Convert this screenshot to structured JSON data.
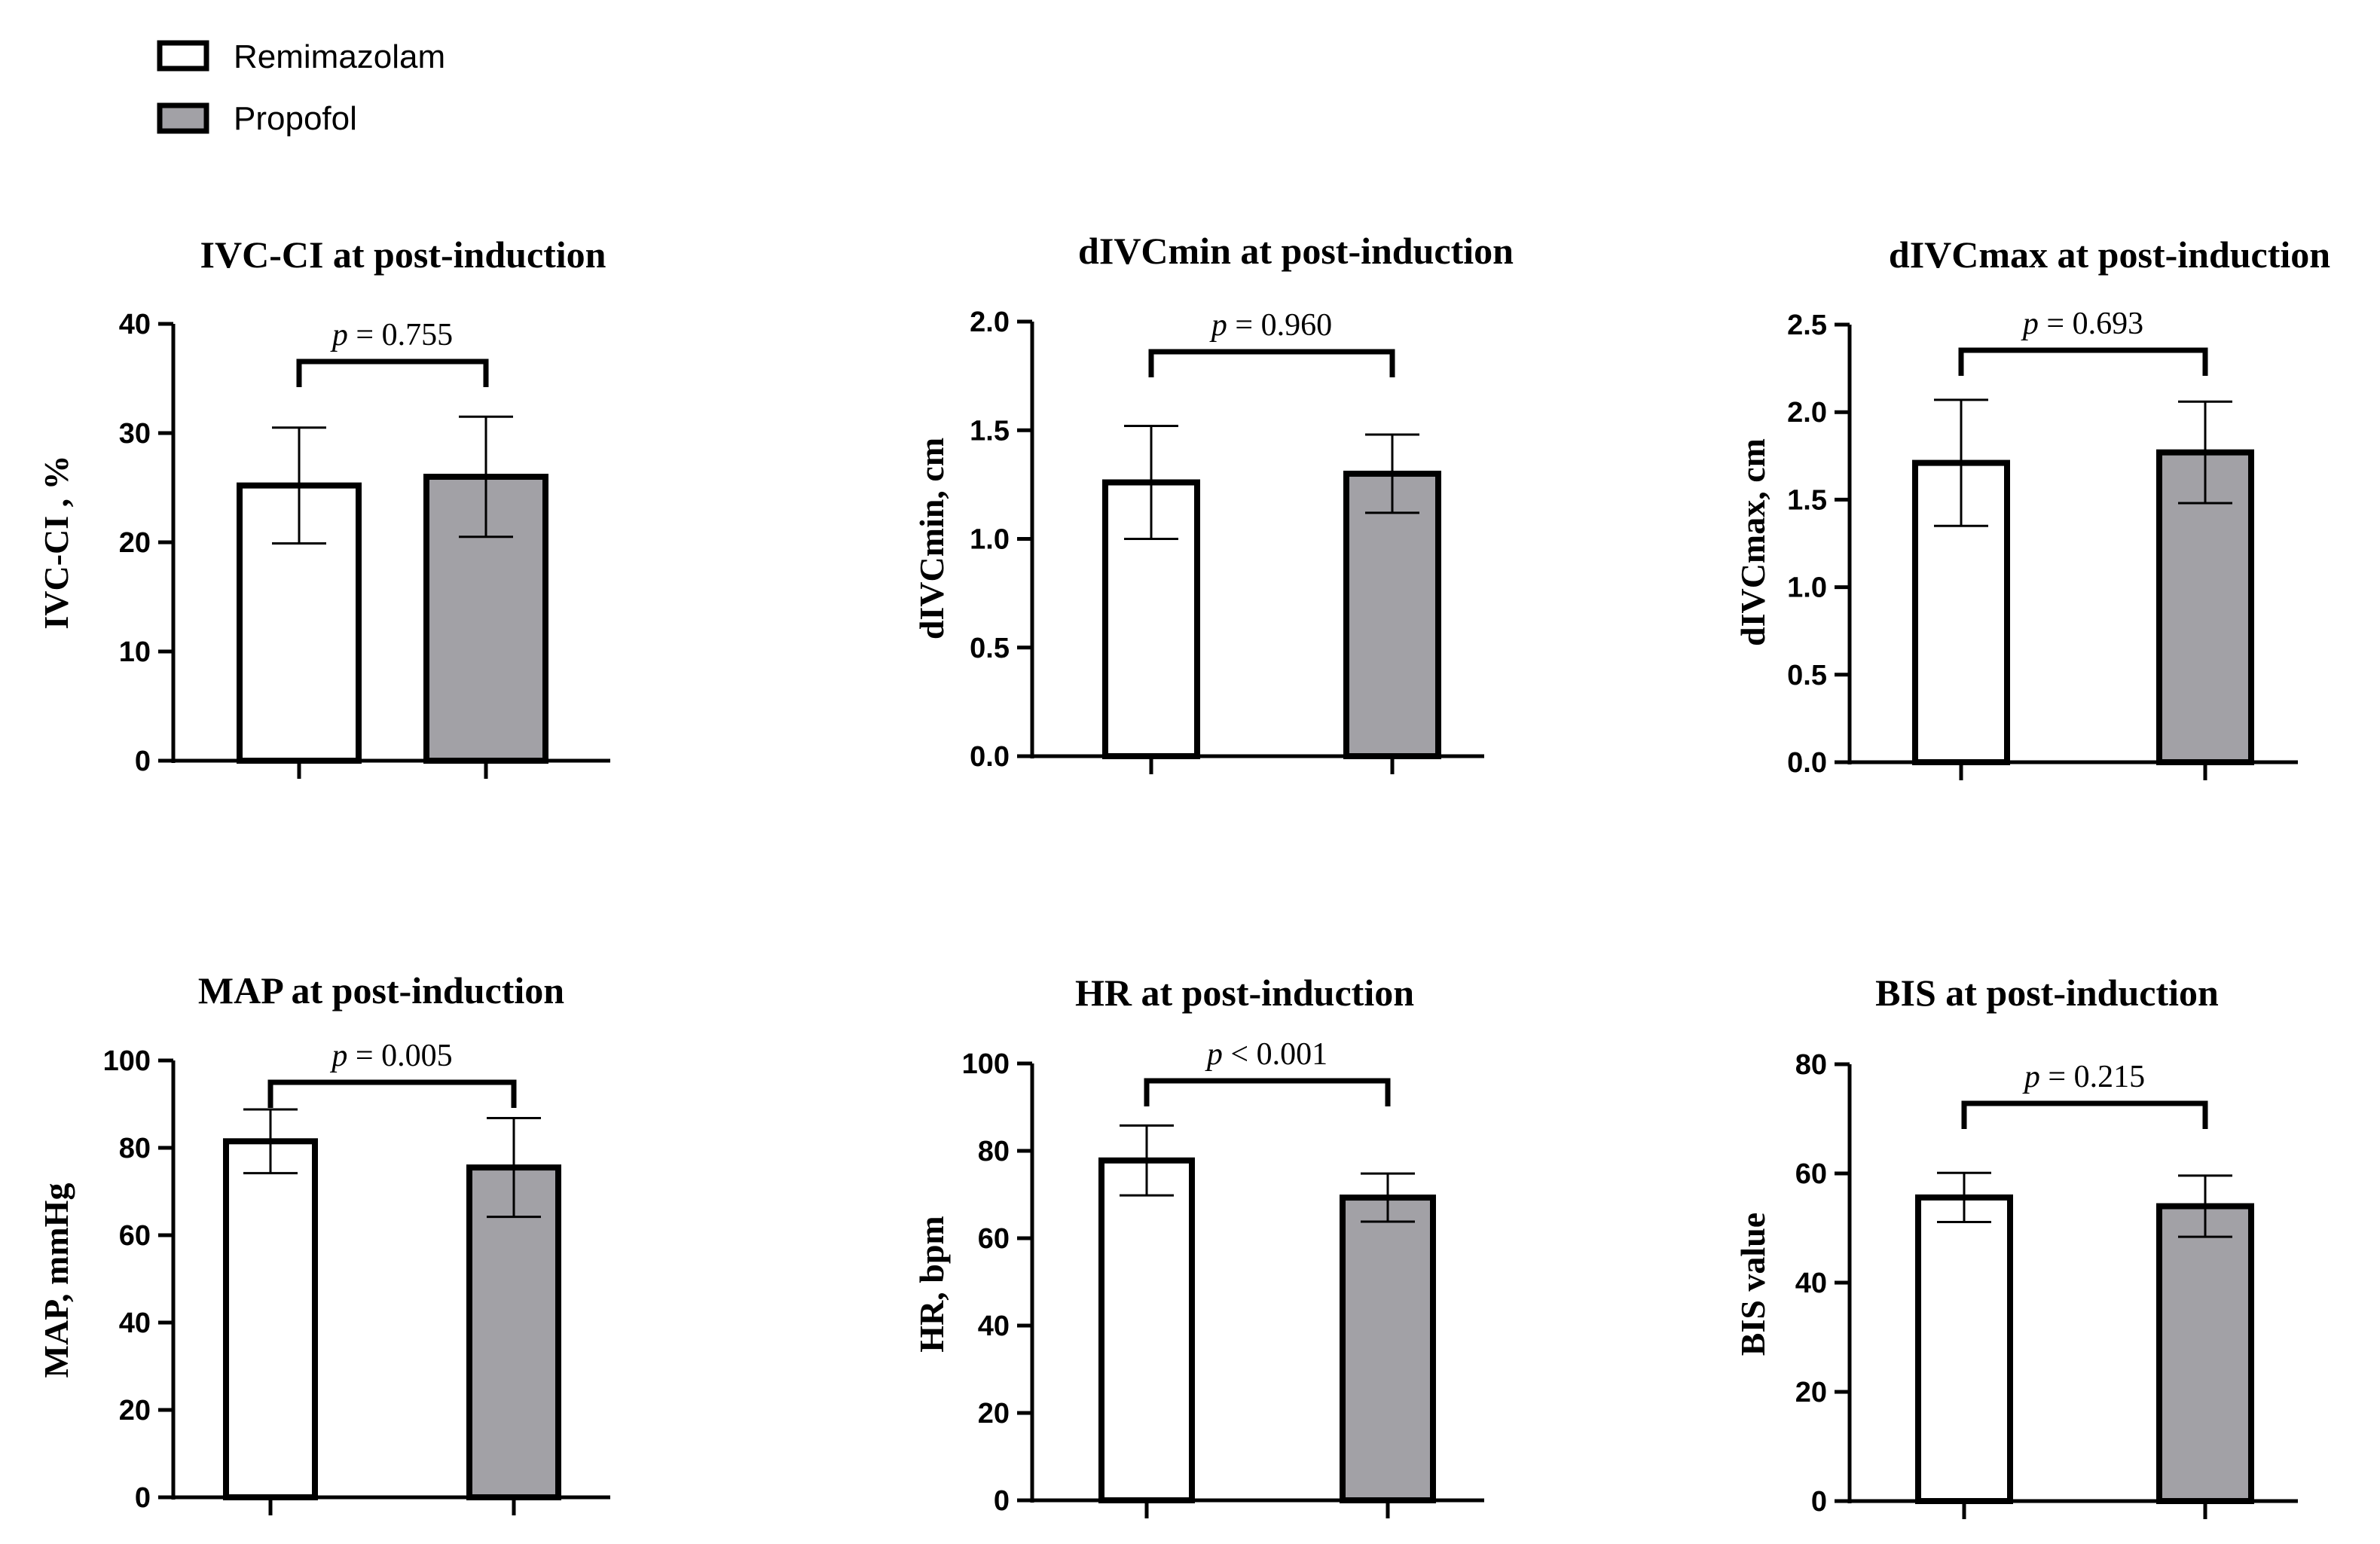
{
  "legend": {
    "items": [
      {
        "label": "Remimazolam",
        "fill": "#ffffff"
      },
      {
        "label": "Propofol",
        "fill": "#a2a1a6"
      }
    ]
  },
  "colors": {
    "remimazolam": "#ffffff",
    "propofol": "#a2a1a6",
    "stroke": "#000000"
  },
  "chart_data": [
    {
      "type": "bar",
      "title": "IVC-CI at post-induction",
      "ylabel": "IVC-CI , %",
      "categories": [
        "Remimazolam",
        "Propofol"
      ],
      "values": [
        25.2,
        26.0
      ],
      "errors": [
        5.3,
        5.5
      ],
      "ylim": [
        0,
        40
      ],
      "yticks": [
        0,
        10,
        20,
        30,
        40
      ],
      "p_prefix": "p",
      "p_op": "=",
      "p_value": "0.755"
    },
    {
      "type": "bar",
      "title": "dIVCmin at post-induction",
      "ylabel": "dIVCmin, cm",
      "categories": [
        "Remimazolam",
        "Propofol"
      ],
      "values": [
        1.26,
        1.3
      ],
      "errors": [
        0.26,
        0.18
      ],
      "ylim": [
        0,
        2.0
      ],
      "yticks": [
        0.0,
        0.5,
        1.0,
        1.5,
        2.0
      ],
      "p_prefix": "p",
      "p_op": "=",
      "p_value": "0.960"
    },
    {
      "type": "bar",
      "title": "dIVCmax at post-induction",
      "ylabel": "dIVCmax, cm",
      "categories": [
        "Remimazolam",
        "Propofol"
      ],
      "values": [
        1.71,
        1.77
      ],
      "errors": [
        0.36,
        0.29
      ],
      "ylim": [
        0,
        2.5
      ],
      "yticks": [
        0.0,
        0.5,
        1.0,
        1.5,
        2.0,
        2.5
      ],
      "p_prefix": "p",
      "p_op": "=",
      "p_value": "0.693"
    },
    {
      "type": "bar",
      "title": "MAP at post-induction",
      "ylabel": "MAP, mmHg",
      "categories": [
        "Remimazolam",
        "Propofol"
      ],
      "values": [
        81.5,
        75.5
      ],
      "errors": [
        7.3,
        11.3
      ],
      "ylim": [
        0,
        100
      ],
      "yticks": [
        0,
        20,
        40,
        60,
        80,
        100
      ],
      "p_prefix": "p",
      "p_op": "=",
      "p_value": "0.005"
    },
    {
      "type": "bar",
      "title": "HR at post-induction",
      "ylabel": "HR, bpm",
      "categories": [
        "Remimazolam",
        "Propofol"
      ],
      "values": [
        77.8,
        69.3
      ],
      "errors": [
        8.0,
        5.5
      ],
      "ylim": [
        0,
        100
      ],
      "yticks": [
        0,
        20,
        40,
        60,
        80,
        100
      ],
      "p_prefix": "p",
      "p_op": "<",
      "p_value": "0.001"
    },
    {
      "type": "bar",
      "title": "BIS at post-induction",
      "ylabel": "BIS value",
      "categories": [
        "Remimazolam",
        "Propofol"
      ],
      "values": [
        55.6,
        54.0
      ],
      "errors": [
        4.5,
        5.6
      ],
      "ylim": [
        0,
        80
      ],
      "yticks": [
        0,
        20,
        40,
        60,
        80
      ],
      "p_prefix": "p",
      "p_op": "=",
      "p_value": "0.215"
    }
  ]
}
